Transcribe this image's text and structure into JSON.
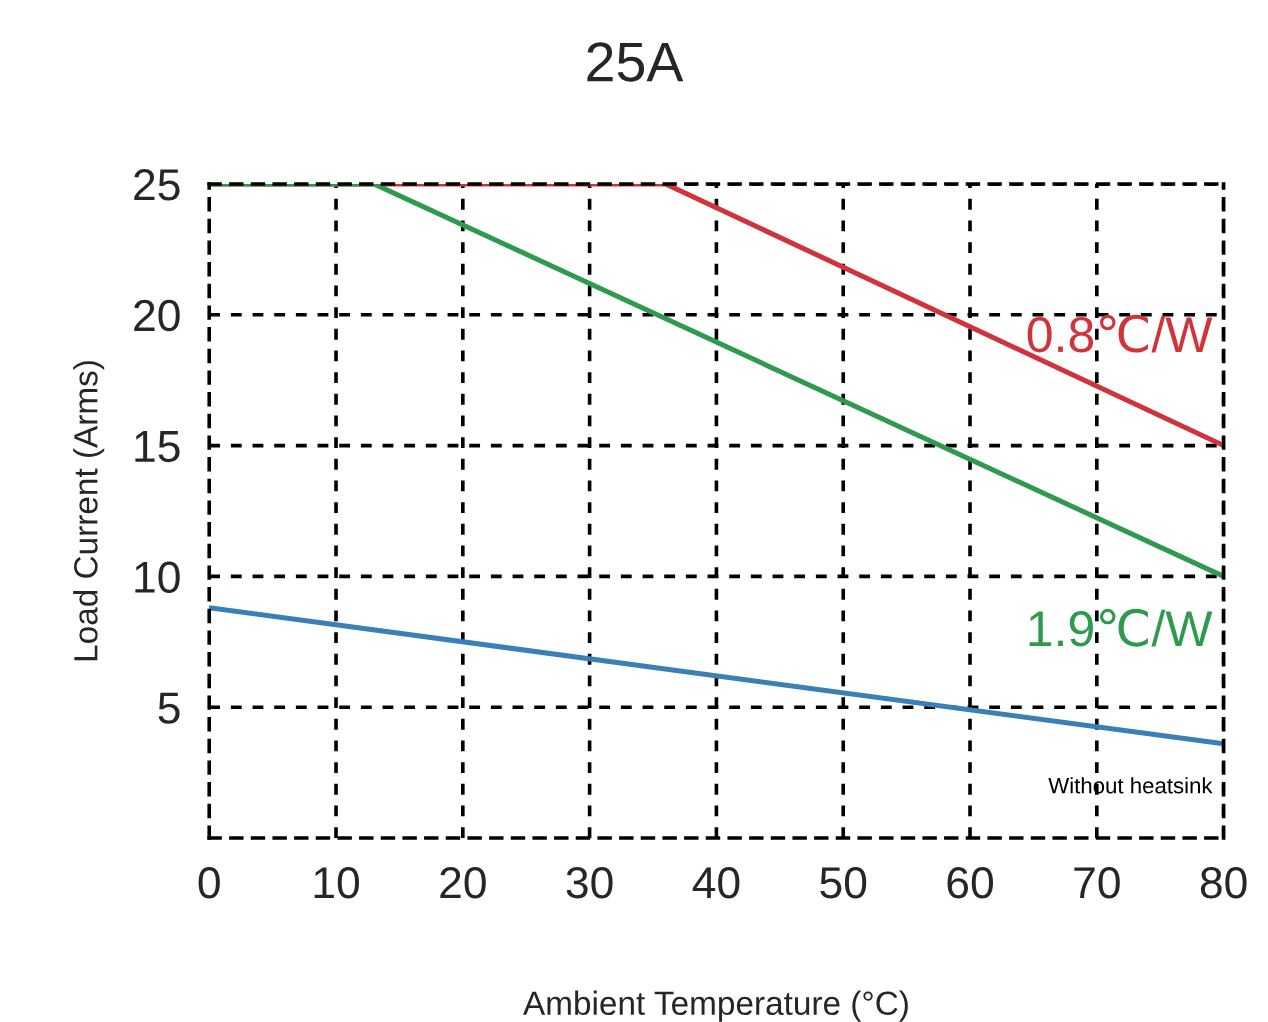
{
  "chart_data": {
    "type": "line",
    "title": "25A",
    "xlabel": "Ambient Temperature (°C)",
    "ylabel": "Load Current (Arms)",
    "xlim": [
      0,
      80
    ],
    "ylim": [
      0,
      25
    ],
    "xticks": [
      0,
      10,
      20,
      30,
      40,
      50,
      60,
      70,
      80
    ],
    "yticks": [
      5,
      10,
      15,
      20,
      25
    ],
    "grid": true,
    "line_style": "solid",
    "legend": false,
    "series": [
      {
        "name": "0.8℃/W",
        "color": "#d0343a",
        "x": [
          0,
          36,
          80
        ],
        "values": [
          25,
          25,
          15
        ]
      },
      {
        "name": "1.9℃/W",
        "color": "#2e9a4e",
        "x": [
          0,
          13,
          80
        ],
        "values": [
          25,
          25,
          10
        ]
      },
      {
        "name": "Without heatsink",
        "color": "#3a7fb5",
        "x": [
          0,
          80
        ],
        "values": [
          8.8,
          3.6
        ]
      }
    ]
  }
}
